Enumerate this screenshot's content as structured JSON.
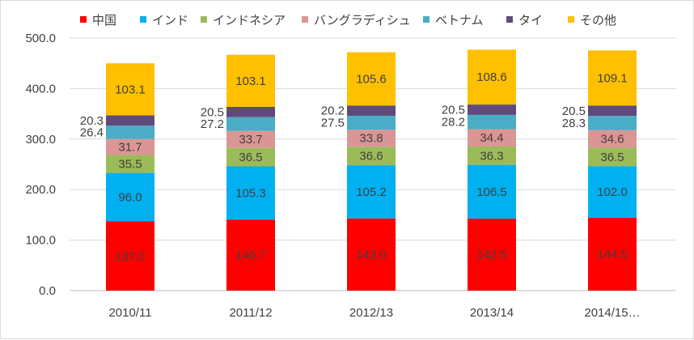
{
  "chart_data": {
    "type": "bar",
    "stacked": true,
    "categories": [
      "2010/11",
      "2011/12",
      "2012/13",
      "2013/14",
      "2014/15…"
    ],
    "series": [
      {
        "name": "中国",
        "color": "#ff0000",
        "values": [
          137.0,
          140.7,
          143.0,
          142.5,
          144.5
        ]
      },
      {
        "name": "インド",
        "color": "#00b0f0",
        "values": [
          96.0,
          105.3,
          105.2,
          106.5,
          102.0
        ]
      },
      {
        "name": "インドネシア",
        "color": "#9bbb59",
        "values": [
          35.5,
          36.5,
          36.6,
          36.3,
          36.5
        ]
      },
      {
        "name": "バングラディシュ",
        "color": "#da9694",
        "values": [
          31.7,
          33.7,
          33.8,
          34.4,
          34.6
        ]
      },
      {
        "name": "ベトナム",
        "color": "#4bacc6",
        "values": [
          26.4,
          27.2,
          27.5,
          28.2,
          28.3
        ]
      },
      {
        "name": "タイ",
        "color": "#604a7b",
        "values": [
          20.3,
          20.5,
          20.2,
          20.5,
          20.5
        ]
      },
      {
        "name": "その他",
        "color": "#ffc000",
        "values": [
          103.1,
          103.1,
          105.6,
          108.6,
          109.1
        ]
      }
    ],
    "ylim": [
      0,
      500
    ],
    "yticks": [
      "0.0",
      "100.0",
      "200.0",
      "300.0",
      "400.0",
      "500.0"
    ],
    "grid": true,
    "legend": "top"
  }
}
